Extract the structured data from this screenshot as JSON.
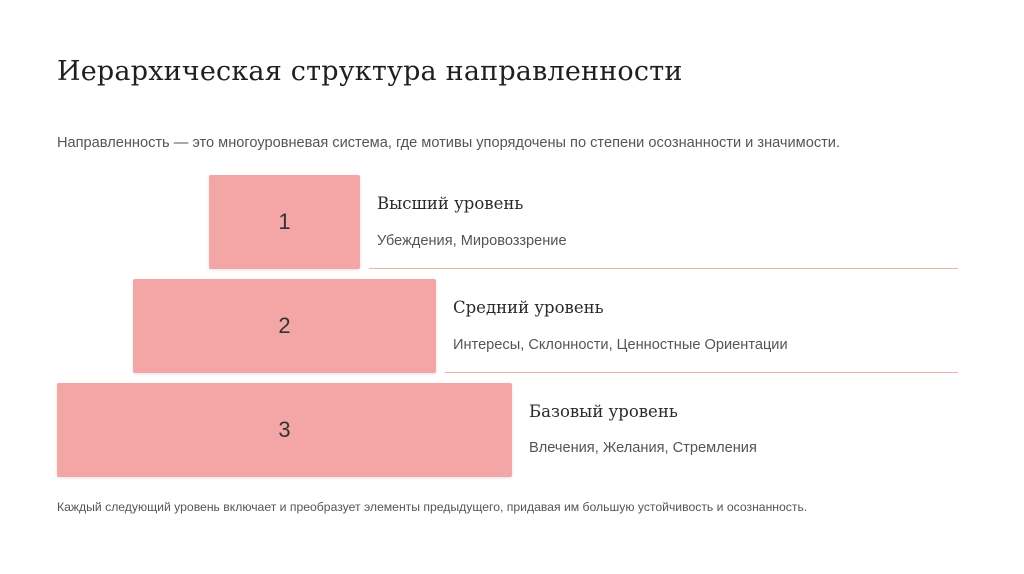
{
  "slide": {
    "title": "Иерархическая структура направленности",
    "subtitle": "Направленность — это многоуровневая система, где мотивы упорядочены по степени осознанности и значимости.",
    "footnote": "Каждый следующий уровень включает и преобразует элементы предыдущего, придавая им большую устойчивость и осознанность."
  },
  "levels": [
    {
      "number": "1",
      "title": "Высший уровень",
      "description": "Убеждения, Мировоззрение"
    },
    {
      "number": "2",
      "title": "Средний уровень",
      "description": "Интересы, Склонности, Ценностные Ориентации"
    },
    {
      "number": "3",
      "title": "Базовый уровень",
      "description": "Влечения, Желания, Стремления"
    }
  ],
  "colors": {
    "block_fill": "#f4a6a6",
    "divider": "#f1b0ac",
    "title_text": "#1f1f1f",
    "body_text": "#555555"
  }
}
